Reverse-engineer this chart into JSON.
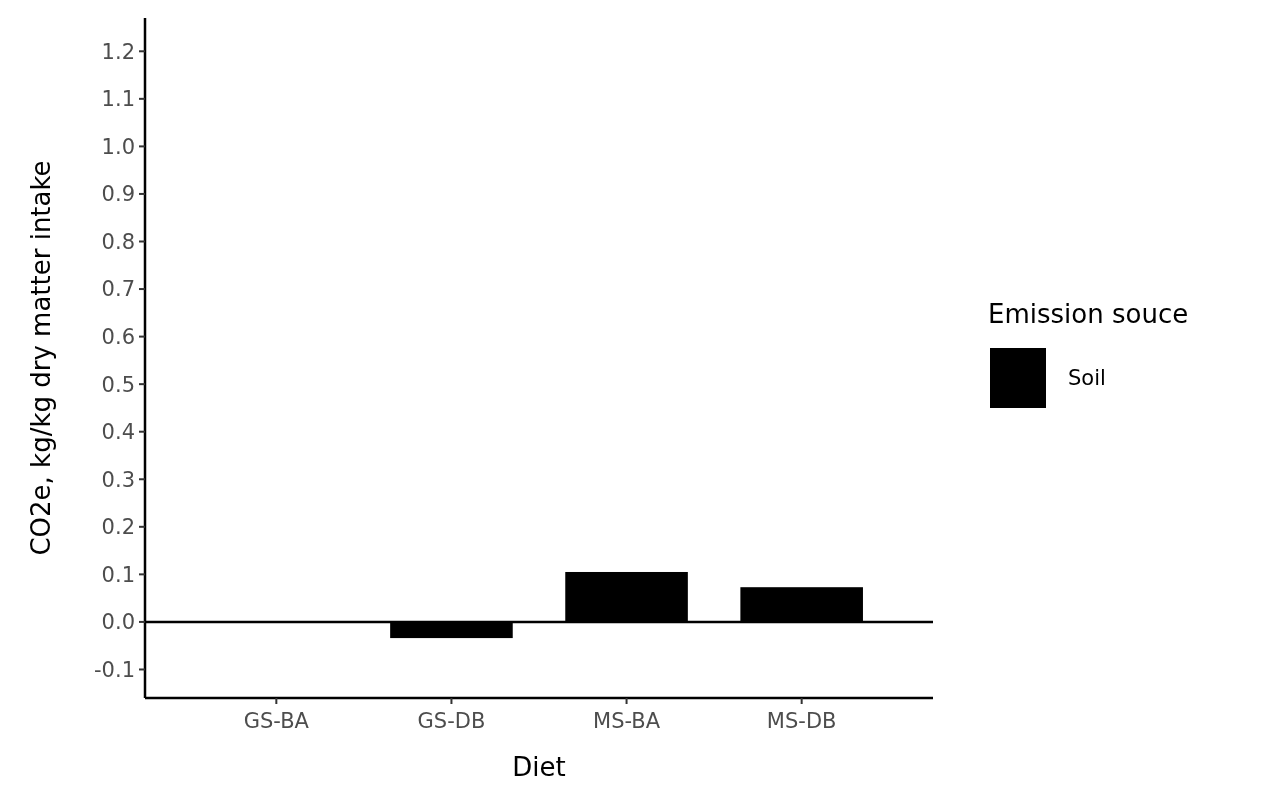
{
  "chart_data": {
    "type": "bar",
    "xlabel": "Diet",
    "ylabel": "CO2e, kg/kg dry matter intake",
    "legend_title": "Emission souce",
    "categories": [
      "GS-BA",
      "GS-DB",
      "MS-BA",
      "MS-DB"
    ],
    "series": [
      {
        "name": "Soil",
        "color": "#000000",
        "values": [
          0,
          -0.034,
          0.105,
          0.073
        ]
      }
    ],
    "ylim": [
      -0.16,
      1.27
    ],
    "yticks": [
      -0.1,
      {
        "value": 0,
        "label": "0.0"
      },
      0.1,
      0.2,
      0.3,
      0.4,
      0.5,
      0.6,
      0.7,
      0.8,
      0.9,
      {
        "value": 1,
        "label": "1.0"
      },
      1.1,
      1.2
    ],
    "ref_lines": [
      {
        "axis": "y",
        "value": 0,
        "color": "#000000"
      }
    ],
    "grid": false,
    "legend": "right"
  }
}
